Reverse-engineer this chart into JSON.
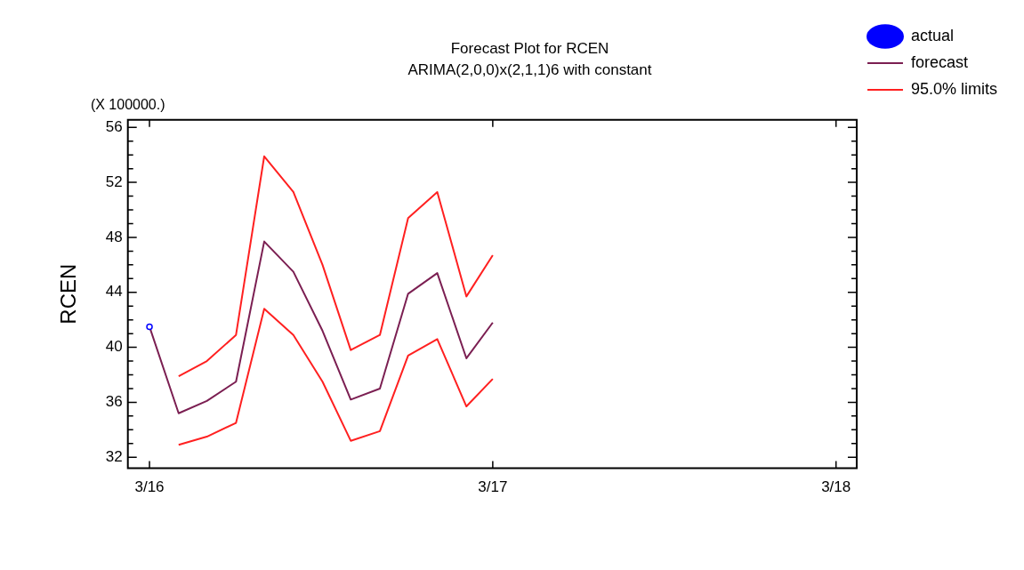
{
  "chart_data": {
    "type": "line",
    "title": "Forecast Plot for RCEN",
    "subtitle": "ARIMA(2,0,0)x(2,1,1)6 with constant",
    "ylabel": "RCEN",
    "annotations": [
      "(X 100000.)"
    ],
    "xlim": [
      "2016-02-07",
      "2018-03-23"
    ],
    "xticks": [
      {
        "value": "2016-03",
        "label": "3/16"
      },
      {
        "value": "2017-03",
        "label": "3/17"
      },
      {
        "value": "2018-03",
        "label": "3/18"
      }
    ],
    "ylim": [
      31.2,
      56.55
    ],
    "yticks": [
      32,
      {
        "value": 33,
        "label": null
      },
      {
        "value": 34,
        "label": null
      },
      {
        "value": 35,
        "label": null
      },
      36,
      {
        "value": 37,
        "label": null
      },
      {
        "value": 38,
        "label": null
      },
      {
        "value": 39,
        "label": null
      },
      40,
      {
        "value": 41,
        "label": null
      },
      {
        "value": 42,
        "label": null
      },
      {
        "value": 43,
        "label": null
      },
      44,
      {
        "value": 45,
        "label": null
      },
      {
        "value": 46,
        "label": null
      },
      {
        "value": 47,
        "label": null
      },
      48,
      {
        "value": 49,
        "label": null
      },
      {
        "value": 50,
        "label": null
      },
      {
        "value": 51,
        "label": null
      },
      52,
      {
        "value": 53,
        "label": null
      },
      {
        "value": 54,
        "label": null
      },
      {
        "value": 55,
        "label": null
      },
      56
    ],
    "grid": false,
    "legend": "top right",
    "series": [
      {
        "name": "actual",
        "color": "#0000ff",
        "marker": "circle",
        "x": [
          "2016-03"
        ],
        "values": [
          41.5
        ]
      },
      {
        "name": "forecast",
        "color": "#7b1f52",
        "marker": "none",
        "x": [
          "2016-03",
          "2016-04",
          "2016-05",
          "2016-06",
          "2016-07",
          "2016-08",
          "2016-09",
          "2016-10",
          "2016-11",
          "2016-12",
          "2017-01",
          "2017-02",
          "2017-03"
        ],
        "values": [
          41.5,
          35.2,
          36.1,
          37.5,
          47.7,
          45.5,
          41.2,
          36.2,
          37.0,
          43.9,
          45.4,
          39.2,
          41.8
        ]
      },
      {
        "name": "95.0% limits",
        "color": "#ff2020",
        "marker": "none",
        "x": [
          "2016-04",
          "2016-05",
          "2016-06",
          "2016-07",
          "2016-08",
          "2016-09",
          "2016-10",
          "2016-11",
          "2016-12",
          "2017-01",
          "2017-02",
          "2017-03"
        ],
        "values": [
          37.9,
          39.0,
          40.9,
          53.9,
          51.3,
          46.0,
          39.8,
          40.9,
          49.4,
          51.3,
          43.7,
          46.7
        ]
      },
      {
        "color": "#ff2020",
        "marker": "none",
        "x": [
          "2016-04",
          "2016-05",
          "2016-06",
          "2016-07",
          "2016-08",
          "2016-09",
          "2016-10",
          "2016-11",
          "2016-12",
          "2017-01",
          "2017-02",
          "2017-03"
        ],
        "values": [
          32.9,
          33.5,
          34.5,
          42.8,
          40.9,
          37.5,
          33.2,
          33.9,
          39.4,
          40.6,
          35.7,
          37.7
        ]
      }
    ]
  }
}
